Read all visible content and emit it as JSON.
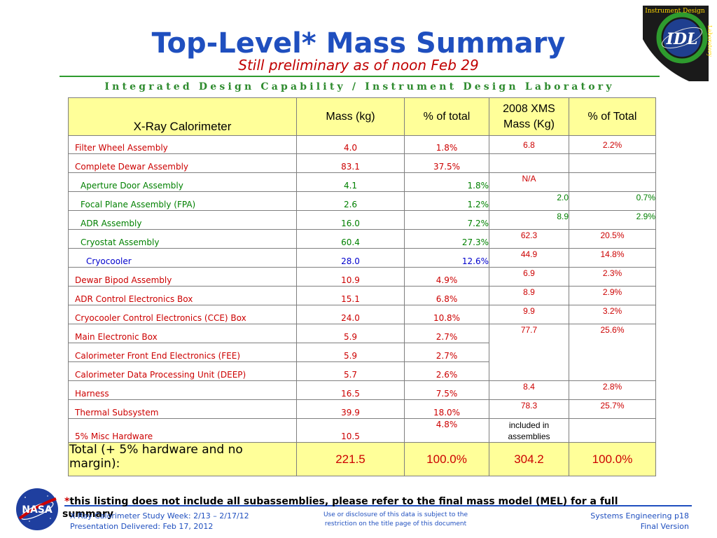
{
  "header": {
    "title": "Top-Level* Mass Summary",
    "subtitle": "Still preliminary as of noon Feb 29",
    "lab_line": "Integrated Design Capability / Instrument Design Laboratory"
  },
  "logo": {
    "icon": "instrument-design-laboratory-logo",
    "top_text": "Instrument Design",
    "side_text": "Laboratory",
    "center_text": "IDL"
  },
  "table": {
    "headers": [
      "X-Ray Calorimeter",
      "Mass (kg)",
      "% of total",
      "2008 XMS Mass (Kg)",
      "% of Total"
    ],
    "rows": [
      {
        "name": "Filter Wheel Assembly",
        "mass": "4.0",
        "pct": "1.8%",
        "xms": "6.8",
        "xms_pct": "2.2%"
      },
      {
        "name": "Complete Dewar Assembly",
        "mass": "83.1",
        "pct": "37.5%",
        "xms": "",
        "xms_pct": ""
      },
      {
        "name": "Aperture Door Assembly",
        "mass": "4.1",
        "pct": "1.8%",
        "xms": "N/A",
        "xms_pct": ""
      },
      {
        "name": "Focal Plane Assembly (FPA)",
        "mass": "2.6",
        "pct": "1.2%",
        "xms": "2.0",
        "xms_pct": "0.7%"
      },
      {
        "name": "ADR Assembly",
        "mass": "16.0",
        "pct": "7.2%",
        "xms": "8.9",
        "xms_pct": "2.9%"
      },
      {
        "name": "Cryostat Assembly",
        "mass": "60.4",
        "pct": "27.3%",
        "xms": "62.3",
        "xms_pct": "20.5%"
      },
      {
        "name": "Cryocooler",
        "mass": "28.0",
        "pct": "12.6%",
        "xms": "44.9",
        "xms_pct": "14.8%"
      },
      {
        "name": "Dewar Bipod Assembly",
        "mass": "10.9",
        "pct": "4.9%",
        "xms": "6.9",
        "xms_pct": "2.3%"
      },
      {
        "name": "ADR Control Electronics Box",
        "mass": "15.1",
        "pct": "6.8%",
        "xms": "8.9",
        "xms_pct": "2.9%"
      },
      {
        "name": "Cryocooler Control Electronics (CCE) Box",
        "mass": "24.0",
        "pct": "10.8%",
        "xms": "9.9",
        "xms_pct": "3.2%"
      },
      {
        "name": "Main Electronic Box",
        "mass": "5.9",
        "pct": "2.7%",
        "xms": "77.7",
        "xms_pct": "25.6%"
      },
      {
        "name": "Calorimeter Front End Electronics (FEE)",
        "mass": "5.9",
        "pct": "2.7%"
      },
      {
        "name": "Calorimeter Data Processing Unit (DEEP)",
        "mass": "5.7",
        "pct": "2.6%"
      },
      {
        "name": "Harness",
        "mass": "16.5",
        "pct": "7.5%",
        "xms": "8.4",
        "xms_pct": "2.8%"
      },
      {
        "name": "Thermal Subsystem",
        "mass": "39.9",
        "pct": "18.0%",
        "xms": "78.3",
        "xms_pct": "25.7%"
      },
      {
        "name": "5% Misc Hardware",
        "mass": "10.5",
        "pct": "4.8%",
        "xms": "included in assemblies",
        "xms_pct": ""
      }
    ],
    "total": {
      "label": "Total (+ 5% hardware and no margin):",
      "mass": "221.5",
      "pct": "100.0%",
      "xms": "304.2",
      "xms_pct": "100.0%"
    }
  },
  "footnote": {
    "star": "*",
    "text": "this listing does not include all subassemblies, please refer to the final mass model (MEL) for a full",
    "continuation": "summary"
  },
  "footer": {
    "left_line1": "X-Ray Calorimeter Study Week:  2/13 – 2/17/12",
    "left_line2": "Presentation Delivered: Feb 17, 2012",
    "middle_line1": "Use or disclosure of this data is subject to the",
    "middle_line2": "restriction on the title page of this document",
    "right_line1": "Systems Engineering p18",
    "right_line2": "Final Version",
    "nasa_logo_text": "NASA"
  },
  "colors": {
    "title_blue": "#1f4fbf",
    "red": "#cc0000",
    "green": "#008000",
    "blue": "#0000cc",
    "header_yellow": "#ffff99"
  }
}
